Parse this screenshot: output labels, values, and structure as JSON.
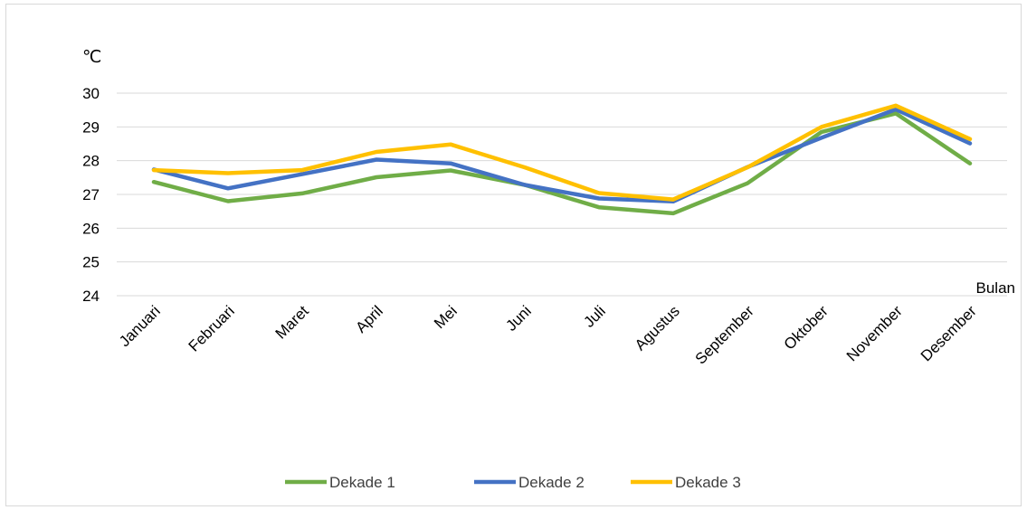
{
  "chart_data": {
    "type": "line",
    "title": "",
    "ylabel": "℃",
    "xlabel": "Bulan",
    "ylim": [
      24,
      30
    ],
    "yticks": [
      24,
      25,
      26,
      27,
      28,
      29,
      30
    ],
    "grid": true,
    "legend_position": "bottom",
    "categories": [
      "Januari",
      "Februari",
      "Maret",
      "April",
      "Mei",
      "Juni",
      "Juli",
      "Agustus",
      "September",
      "Oktober",
      "November",
      "Desember"
    ],
    "series": [
      {
        "name": "Dekade 1",
        "color": "#70ad47",
        "values": [
          27.37,
          26.8,
          27.03,
          27.51,
          27.71,
          27.28,
          26.62,
          26.44,
          27.33,
          28.85,
          29.4,
          27.92
        ]
      },
      {
        "name": "Dekade 2",
        "color": "#4472c4",
        "values": [
          27.74,
          27.18,
          27.6,
          28.03,
          27.92,
          27.28,
          26.88,
          26.79,
          27.81,
          28.68,
          29.52,
          28.51
        ]
      },
      {
        "name": "Dekade 3",
        "color": "#ffc000",
        "values": [
          27.72,
          27.63,
          27.72,
          28.26,
          28.48,
          27.8,
          27.04,
          26.85,
          27.8,
          29.0,
          29.63,
          28.64
        ]
      }
    ]
  }
}
